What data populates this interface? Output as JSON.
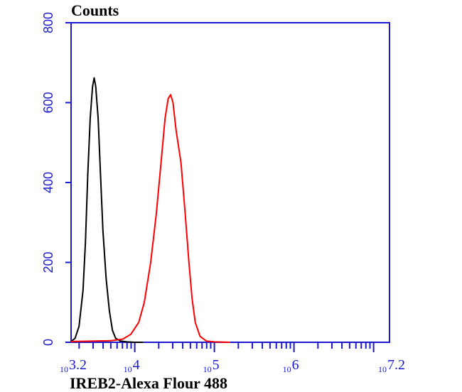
{
  "chart_data": {
    "type": "line",
    "ylabel": "Counts",
    "xlabel": "IREB2-Alexa Flour 488",
    "xscale": "log",
    "xlim": [
      3.2,
      7.2
    ],
    "ylim": [
      0,
      800
    ],
    "yticks": [
      0,
      200,
      400,
      600,
      800
    ],
    "xticks": [
      {
        "value": 3.2,
        "base": "10",
        "exp": "3.2"
      },
      {
        "value": 4,
        "base": "10",
        "exp": "4"
      },
      {
        "value": 5,
        "base": "10",
        "exp": "5"
      },
      {
        "value": 6,
        "base": "10",
        "exp": "6"
      },
      {
        "value": 7.2,
        "base": "10",
        "exp": "7.2"
      }
    ],
    "grid": false,
    "series": [
      {
        "color": "#000000",
        "points": [
          [
            3.2,
            2
          ],
          [
            3.25,
            10
          ],
          [
            3.3,
            40
          ],
          [
            3.35,
            130
          ],
          [
            3.38,
            250
          ],
          [
            3.41,
            420
          ],
          [
            3.44,
            560
          ],
          [
            3.47,
            640
          ],
          [
            3.49,
            662
          ],
          [
            3.51,
            640
          ],
          [
            3.54,
            560
          ],
          [
            3.57,
            420
          ],
          [
            3.6,
            280
          ],
          [
            3.64,
            160
          ],
          [
            3.68,
            80
          ],
          [
            3.72,
            30
          ],
          [
            3.76,
            10
          ],
          [
            3.82,
            3
          ],
          [
            3.9,
            1
          ],
          [
            4.0,
            0
          ],
          [
            4.1,
            0
          ]
        ]
      },
      {
        "color": "#ff0000",
        "points": [
          [
            3.2,
            2
          ],
          [
            3.5,
            3
          ],
          [
            3.7,
            4
          ],
          [
            3.85,
            8
          ],
          [
            3.95,
            20
          ],
          [
            4.05,
            50
          ],
          [
            4.12,
            100
          ],
          [
            4.2,
            200
          ],
          [
            4.27,
            320
          ],
          [
            4.33,
            450
          ],
          [
            4.38,
            560
          ],
          [
            4.42,
            610
          ],
          [
            4.45,
            620
          ],
          [
            4.48,
            600
          ],
          [
            4.52,
            530
          ],
          [
            4.58,
            450
          ],
          [
            4.63,
            330
          ],
          [
            4.68,
            200
          ],
          [
            4.72,
            110
          ],
          [
            4.76,
            50
          ],
          [
            4.82,
            15
          ],
          [
            4.9,
            3
          ],
          [
            5.0,
            1
          ],
          [
            5.2,
            0
          ]
        ]
      }
    ]
  }
}
